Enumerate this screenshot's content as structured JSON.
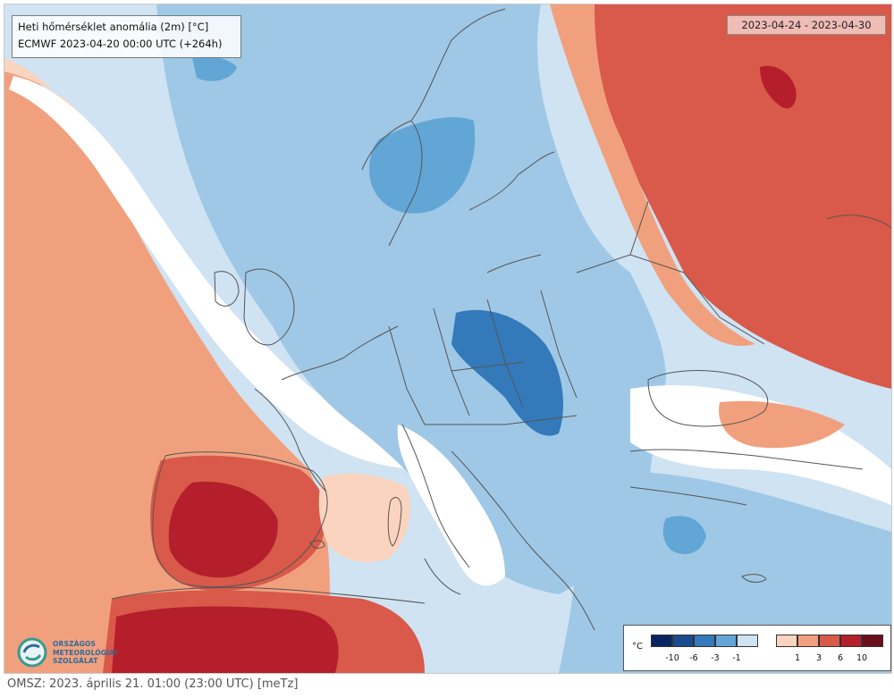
{
  "map": {
    "title": "Heti hőmérséklet anomália (2m) [°C]",
    "run_info": "ECMWF 2023-04-20 00:00 UTC (+264h)",
    "date_range": "2023-04-24 - 2023-04-30",
    "colors": {
      "land_neutral": "#ffffff",
      "cold1": "#cfe3f2",
      "cold2": "#9fc8e6",
      "cold3": "#62a6d6",
      "cold4": "#3479b9",
      "cold5": "#1a4b8f",
      "cold6": "#0a2460",
      "warm1": "#fbd4bf",
      "warm2": "#f1a07e",
      "warm3": "#d9594a",
      "warm4": "#b41f2b",
      "warm5": "#6b0f1c",
      "border": "#555555"
    }
  },
  "legend": {
    "unit": "°C",
    "cold_ticks": [
      "-10",
      "-6",
      "-3",
      "-1"
    ],
    "warm_ticks": [
      "1",
      "3",
      "6",
      "10"
    ]
  },
  "logo": {
    "line1": "ORSZÁGOS",
    "line2": "METEOROLÓGIAI",
    "line3": "SZOLGÁLAT"
  },
  "footer": {
    "text": "OMSZ: 2023. április 21. 01:00 (23:00  UTC)  [meTz]"
  }
}
